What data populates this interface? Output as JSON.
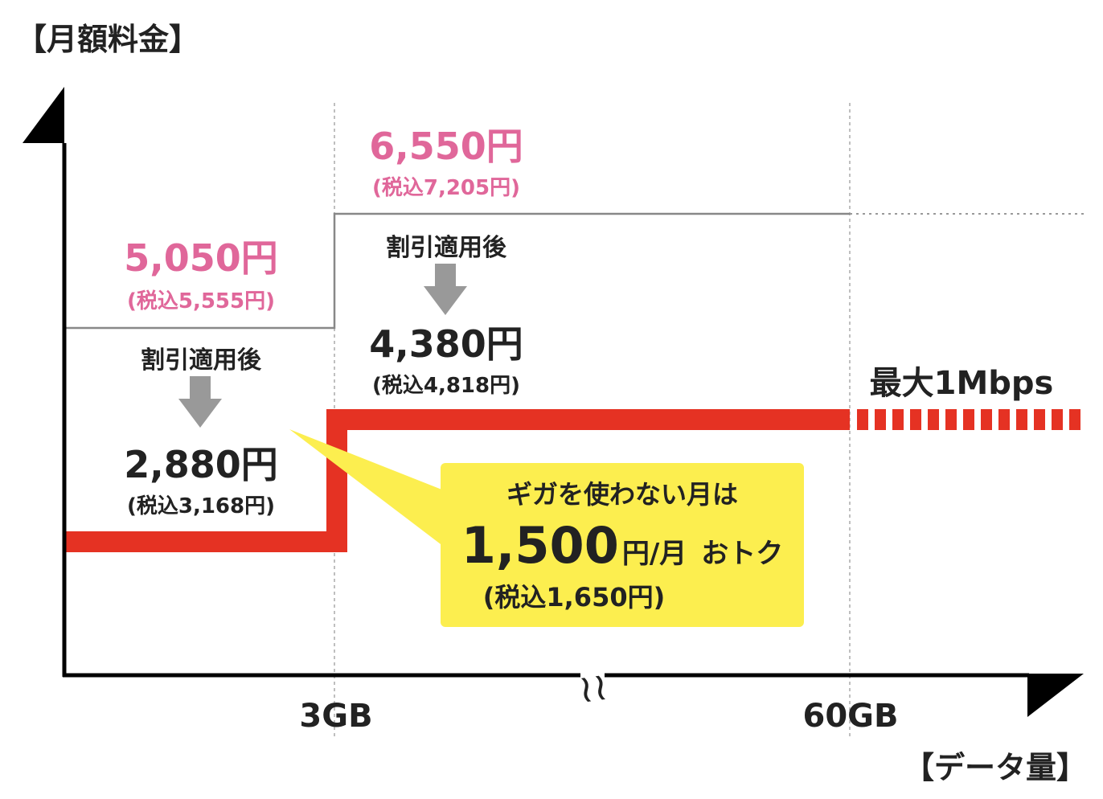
{
  "chart_data": {
    "type": "line",
    "ylabel": "【月額料金】",
    "xlabel": "【データ量】",
    "x_ticks": [
      "3GB",
      "60GB"
    ],
    "axis_break": "≀≀",
    "tiers": [
      {
        "range": "〜3GB",
        "regular_price": "5,050円",
        "regular_price_tax": "(税込5,555円)",
        "discount_label": "割引適用後",
        "discounted_price": "2,880円",
        "discounted_price_tax": "(税込3,168円)"
      },
      {
        "range": "3GB〜60GB",
        "regular_price": "6,550円",
        "regular_price_tax": "(税込7,205円)",
        "discount_label": "割引適用後",
        "discounted_price": "4,380円",
        "discounted_price_tax": "(税込4,818円)"
      }
    ],
    "over_limit_label": "最大1Mbps",
    "callout": {
      "line1": "ギガを使わない月は",
      "amount": "1,500",
      "amount_unit": "円/月",
      "amount_suffix": "おトク",
      "tax": "(税込1,650円)"
    },
    "colors": {
      "discounted_line": "#e53223",
      "regular_line": "#888888",
      "price_pink": "#e0679a",
      "callout_bg": "#fcee4f",
      "arrow": "#999999"
    }
  }
}
